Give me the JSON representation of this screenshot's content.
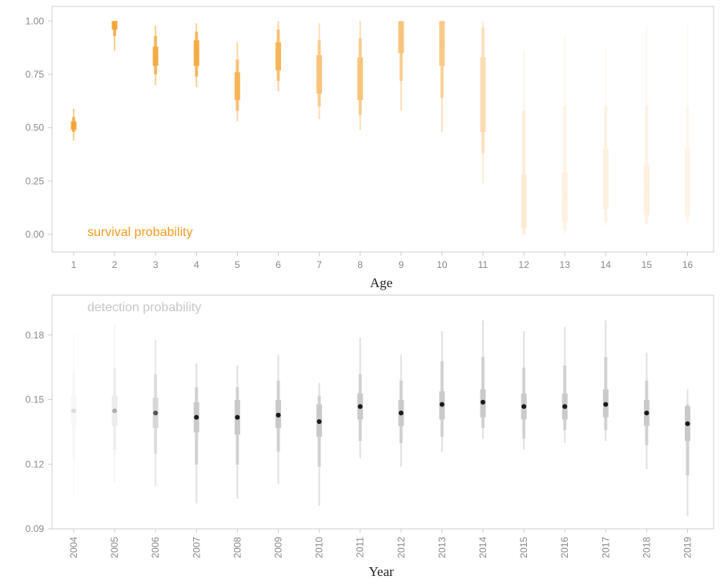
{
  "chart_data": [
    {
      "type": "scatter",
      "subtype": "interval-estimates",
      "annotation": "survival probability",
      "xlabel": "Age",
      "ylabel": "",
      "ylim": [
        -0.03,
        1.02
      ],
      "yticks": [
        0.0,
        0.25,
        0.5,
        0.75,
        1.0
      ],
      "ytick_labels": [
        "0.00",
        "0.25",
        "0.50",
        "0.75",
        "1.00"
      ],
      "color": "#f39c22",
      "categories": [
        "1",
        "2",
        "3",
        "4",
        "5",
        "6",
        "7",
        "8",
        "9",
        "10",
        "11",
        "12",
        "13",
        "14",
        "15",
        "16"
      ],
      "points": [
        {
          "x": "1",
          "median": 0.51,
          "inner": [
            0.49,
            0.53
          ],
          "middle": [
            0.48,
            0.55
          ],
          "outer": [
            0.44,
            0.59
          ],
          "alpha": 0.9
        },
        {
          "x": "2",
          "median": 0.98,
          "inner": [
            0.96,
            1.0
          ],
          "middle": [
            0.93,
            1.0
          ],
          "outer": [
            0.86,
            1.0
          ],
          "alpha": 0.9
        },
        {
          "x": "3",
          "median": 0.83,
          "inner": [
            0.79,
            0.88
          ],
          "middle": [
            0.75,
            0.93
          ],
          "outer": [
            0.7,
            0.98
          ],
          "alpha": 0.85
        },
        {
          "x": "4",
          "median": 0.85,
          "inner": [
            0.79,
            0.91
          ],
          "middle": [
            0.74,
            0.95
          ],
          "outer": [
            0.69,
            0.99
          ],
          "alpha": 0.85
        },
        {
          "x": "5",
          "median": 0.69,
          "inner": [
            0.63,
            0.76
          ],
          "middle": [
            0.58,
            0.82
          ],
          "outer": [
            0.53,
            0.9
          ],
          "alpha": 0.75
        },
        {
          "x": "6",
          "median": 0.83,
          "inner": [
            0.77,
            0.9
          ],
          "middle": [
            0.72,
            0.96
          ],
          "outer": [
            0.67,
            1.0
          ],
          "alpha": 0.75
        },
        {
          "x": "7",
          "median": 0.75,
          "inner": [
            0.66,
            0.84
          ],
          "middle": [
            0.6,
            0.91
          ],
          "outer": [
            0.54,
            0.99
          ],
          "alpha": 0.6
        },
        {
          "x": "8",
          "median": 0.72,
          "inner": [
            0.63,
            0.83
          ],
          "middle": [
            0.56,
            0.92
          ],
          "outer": [
            0.49,
            1.0
          ],
          "alpha": 0.6
        },
        {
          "x": "9",
          "median": 0.92,
          "inner": [
            0.85,
            1.0
          ],
          "middle": [
            0.72,
            1.0
          ],
          "outer": [
            0.58,
            1.0
          ],
          "alpha": 0.6
        },
        {
          "x": "10",
          "median": 0.89,
          "inner": [
            0.79,
            1.0
          ],
          "middle": [
            0.64,
            1.0
          ],
          "outer": [
            0.48,
            1.0
          ],
          "alpha": 0.55
        },
        {
          "x": "11",
          "median": 0.65,
          "inner": [
            0.48,
            0.83
          ],
          "middle": [
            0.38,
            0.97
          ],
          "outer": [
            0.24,
            1.0
          ],
          "alpha": 0.35
        },
        {
          "x": "12",
          "median": 0.14,
          "inner": [
            0.03,
            0.28
          ],
          "middle": [
            0.0,
            0.58
          ],
          "outer": [
            0.0,
            0.86
          ],
          "alpha": 0.2
        },
        {
          "x": "13",
          "median": 0.17,
          "inner": [
            0.06,
            0.29
          ],
          "middle": [
            0.02,
            0.6
          ],
          "outer": [
            0.0,
            0.93
          ],
          "alpha": 0.15
        },
        {
          "x": "14",
          "median": 0.26,
          "inner": [
            0.12,
            0.4
          ],
          "middle": [
            0.06,
            0.6
          ],
          "outer": [
            0.04,
            0.87
          ],
          "alpha": 0.15
        },
        {
          "x": "15",
          "median": 0.21,
          "inner": [
            0.09,
            0.33
          ],
          "middle": [
            0.05,
            0.6
          ],
          "outer": [
            0.05,
            0.98
          ],
          "alpha": 0.15
        },
        {
          "x": "16",
          "median": 0.26,
          "inner": [
            0.09,
            0.4
          ],
          "middle": [
            0.06,
            0.6
          ],
          "outer": [
            0.05,
            0.99
          ],
          "alpha": 0.1
        }
      ]
    },
    {
      "type": "scatter",
      "subtype": "interval-estimates",
      "annotation": "detection probability",
      "xlabel": "Year",
      "ylabel": "",
      "ylim": [
        0.09,
        0.1985
      ],
      "yticks": [
        0.09,
        0.12,
        0.15,
        0.18
      ],
      "ytick_labels": [
        "0.09",
        "0.12",
        "0.15",
        "0.18"
      ],
      "color": "#1a1a1a",
      "interval_color": "#c8c8c8",
      "annotation_color": "#c8c8c8",
      "categories": [
        "2004",
        "2005",
        "2006",
        "2007",
        "2008",
        "2009",
        "2010",
        "2011",
        "2012",
        "2013",
        "2014",
        "2015",
        "2016",
        "2017",
        "2018",
        "2019"
      ],
      "points": [
        {
          "x": "2004",
          "median": 0.1448,
          "inner": [
            0.1378,
            0.1518
          ],
          "middle": [
            0.1228,
            0.1628
          ],
          "outer": [
            0.1048,
            0.1808
          ],
          "alpha": 0.15
        },
        {
          "x": "2005",
          "median": 0.1448,
          "inner": [
            0.1378,
            0.1518
          ],
          "middle": [
            0.1268,
            0.1648
          ],
          "outer": [
            0.1118,
            0.1848
          ],
          "alpha": 0.35
        },
        {
          "x": "2006",
          "median": 0.1438,
          "inner": [
            0.1368,
            0.1508
          ],
          "middle": [
            0.1248,
            0.1618
          ],
          "outer": [
            0.1098,
            0.1778
          ],
          "alpha": 0.75
        },
        {
          "x": "2007",
          "median": 0.1418,
          "inner": [
            0.1348,
            0.1488
          ],
          "middle": [
            0.1198,
            0.1558
          ],
          "outer": [
            0.1018,
            0.1668
          ],
          "alpha": 1
        },
        {
          "x": "2008",
          "median": 0.1418,
          "inner": [
            0.1338,
            0.1498
          ],
          "middle": [
            0.1198,
            0.1558
          ],
          "outer": [
            0.1038,
            0.1658
          ],
          "alpha": 1
        },
        {
          "x": "2009",
          "median": 0.1428,
          "inner": [
            0.1368,
            0.1498
          ],
          "middle": [
            0.1258,
            0.1588
          ],
          "outer": [
            0.1108,
            0.1708
          ],
          "alpha": 1
        },
        {
          "x": "2010",
          "median": 0.1398,
          "inner": [
            0.1328,
            0.1478
          ],
          "middle": [
            0.1188,
            0.1518
          ],
          "outer": [
            0.1008,
            0.1578
          ],
          "alpha": 1
        },
        {
          "x": "2011",
          "median": 0.1468,
          "inner": [
            0.1408,
            0.1528
          ],
          "middle": [
            0.1308,
            0.1618
          ],
          "outer": [
            0.1228,
            0.1788
          ],
          "alpha": 1
        },
        {
          "x": "2012",
          "median": 0.1438,
          "inner": [
            0.1378,
            0.1498
          ],
          "middle": [
            0.1298,
            0.1588
          ],
          "outer": [
            0.1188,
            0.1708
          ],
          "alpha": 1
        },
        {
          "x": "2013",
          "median": 0.1478,
          "inner": [
            0.1408,
            0.1538
          ],
          "middle": [
            0.1328,
            0.1678
          ],
          "outer": [
            0.1258,
            0.1818
          ],
          "alpha": 1
        },
        {
          "x": "2014",
          "median": 0.1488,
          "inner": [
            0.1418,
            0.1548
          ],
          "middle": [
            0.1368,
            0.1698
          ],
          "outer": [
            0.1318,
            0.1868
          ],
          "alpha": 1
        },
        {
          "x": "2015",
          "median": 0.1468,
          "inner": [
            0.1408,
            0.1528
          ],
          "middle": [
            0.1318,
            0.1648
          ],
          "outer": [
            0.1268,
            0.1818
          ],
          "alpha": 1
        },
        {
          "x": "2016",
          "median": 0.1468,
          "inner": [
            0.1408,
            0.1528
          ],
          "middle": [
            0.1358,
            0.1658
          ],
          "outer": [
            0.1298,
            0.1838
          ],
          "alpha": 1
        },
        {
          "x": "2017",
          "median": 0.1478,
          "inner": [
            0.1418,
            0.1548
          ],
          "middle": [
            0.1358,
            0.1698
          ],
          "outer": [
            0.1308,
            0.1868
          ],
          "alpha": 1
        },
        {
          "x": "2018",
          "median": 0.1438,
          "inner": [
            0.1378,
            0.1498
          ],
          "middle": [
            0.1288,
            0.1588
          ],
          "outer": [
            0.1178,
            0.1718
          ],
          "alpha": 1
        },
        {
          "x": "2019",
          "median": 0.1388,
          "inner": [
            0.1308,
            0.1468
          ],
          "middle": [
            0.1148,
            0.1478
          ],
          "outer": [
            0.0958,
            0.1548
          ],
          "alpha": 1
        }
      ]
    }
  ]
}
